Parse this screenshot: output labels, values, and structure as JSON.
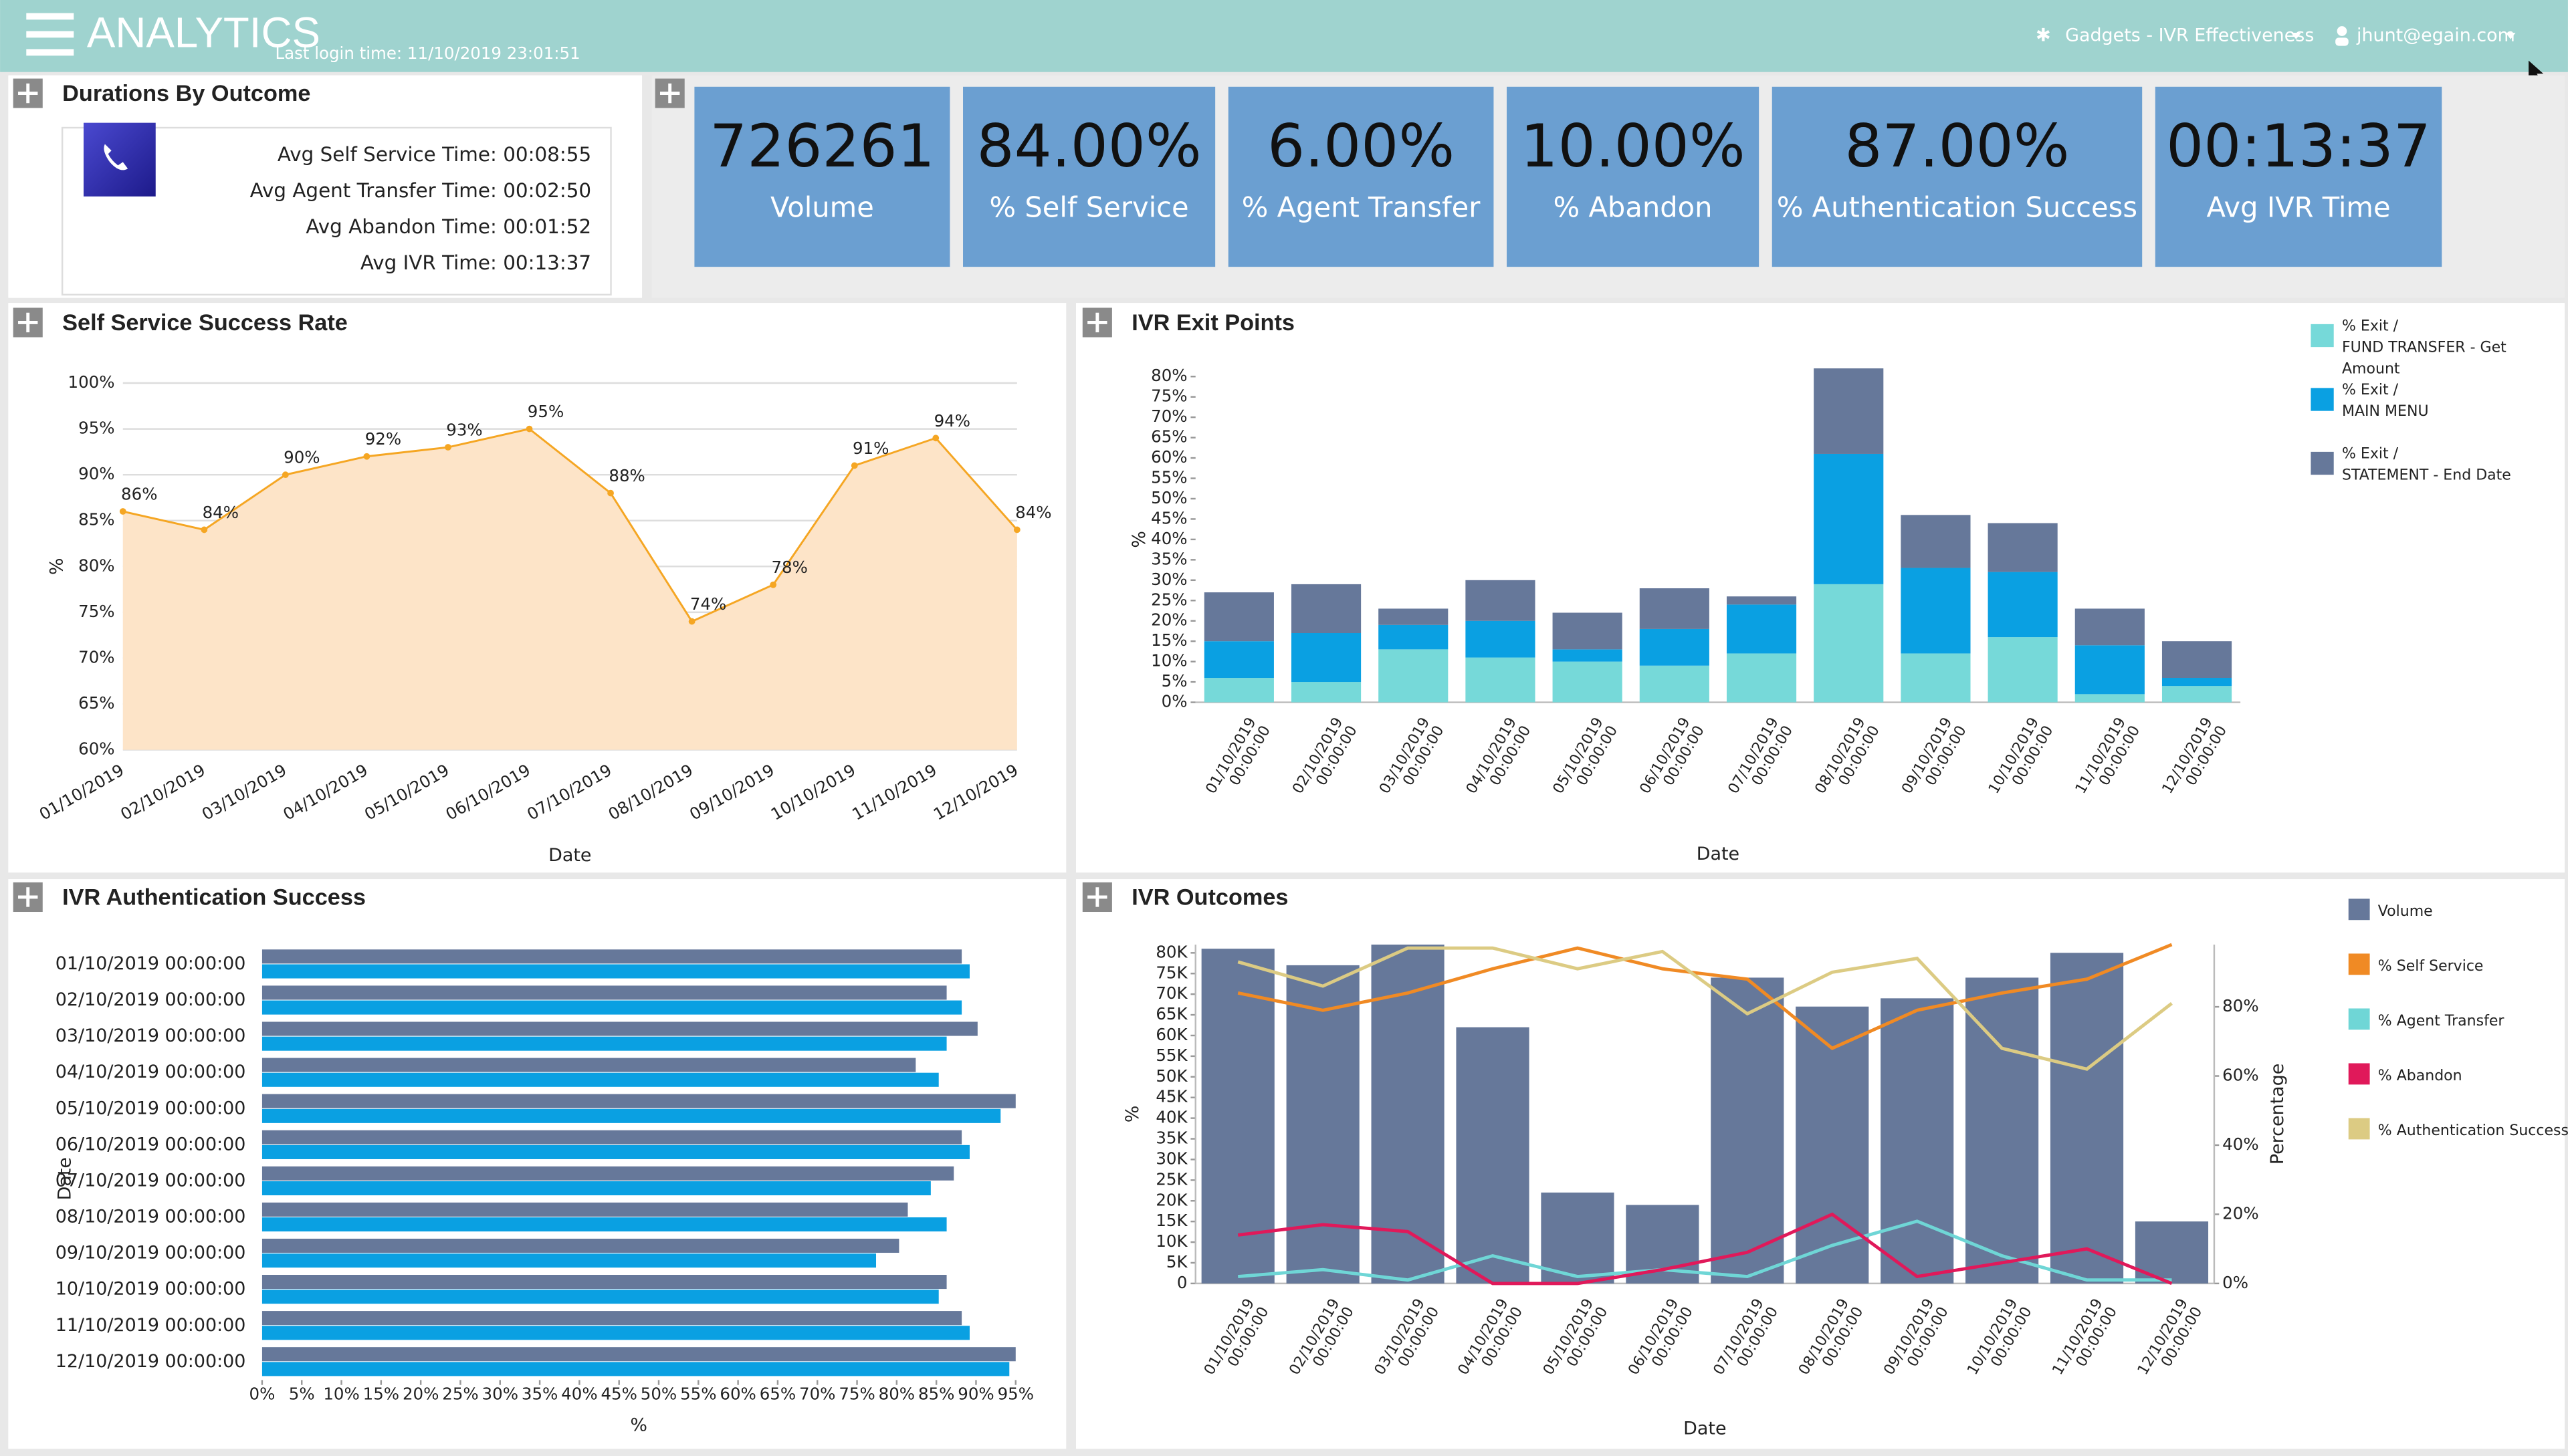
{
  "header": {
    "app_title": "ANALYTICS",
    "last_login": "Last login time: 11/10/2019 23:01:51",
    "gadgets_menu": "Gadgets - IVR Effectiveness",
    "user_menu": "jhunt@egain.com"
  },
  "durations": {
    "title": "Durations By Outcome",
    "lines": [
      "Avg Self Service Time: 00:08:55",
      "Avg Agent Transfer Time: 00:02:50",
      "Avg Abandon Time: 00:01:52",
      "Avg IVR Time: 00:13:37"
    ]
  },
  "kpis": [
    {
      "value": 726261,
      "label": "Volume"
    },
    {
      "value": "84.00%",
      "label": "% Self Service"
    },
    {
      "value": "6.00%",
      "label": "% Agent Transfer"
    },
    {
      "value": "10.00%",
      "label": "% Abandon"
    },
    {
      "value": "87.00%",
      "label": "% Authentication Success"
    },
    {
      "value": "00:13:37",
      "label": "Avg IVR Time"
    }
  ],
  "chart_data": [
    {
      "type": "area",
      "title": "Self Service Success Rate",
      "xlabel": "Date",
      "ylabel": "%",
      "color": "#f5a623",
      "fill": "#fde4c8",
      "grid": true,
      "categories": [
        "01/10/2019",
        "02/10/2019",
        "03/10/2019",
        "04/10/2019",
        "05/10/2019",
        "06/10/2019",
        "07/10/2019",
        "08/10/2019",
        "09/10/2019",
        "10/10/2019",
        "11/10/2019",
        "12/10/2019"
      ],
      "values": [
        86,
        84,
        90,
        92,
        93,
        95,
        88,
        74,
        78,
        91,
        94,
        84
      ],
      "value_labels": [
        "86%",
        "84%",
        "90%",
        "92%",
        "93%",
        "95%",
        "88%",
        "74%",
        "78%",
        "91%",
        "94%",
        "84%"
      ],
      "ylim": [
        60,
        100
      ],
      "yticks": [
        {
          "value": 60,
          "label": "60%"
        },
        {
          "value": 65,
          "label": "65%"
        },
        {
          "value": 70,
          "label": "70%"
        },
        {
          "value": 75,
          "label": "75%"
        },
        {
          "value": 80,
          "label": "80%"
        },
        {
          "value": 85,
          "label": "85%"
        },
        {
          "value": 90,
          "label": "90%"
        },
        {
          "value": 95,
          "label": "95%"
        },
        {
          "value": 100,
          "label": "100%"
        }
      ]
    },
    {
      "type": "stacked-bar",
      "title": "IVR Exit Points",
      "xlabel": "Date",
      "ylabel": "%",
      "categories": [
        "01/10/2019 00:00:00",
        "02/10/2019 00:00:00",
        "03/10/2019 00:00:00",
        "04/10/2019 00:00:00",
        "05/10/2019 00:00:00",
        "06/10/2019 00:00:00",
        "07/10/2019 00:00:00",
        "08/10/2019 00:00:00",
        "09/10/2019 00:00:00",
        "10/10/2019 00:00:00",
        "11/10/2019 00:00:00",
        "12/10/2019 00:00:00"
      ],
      "series": [
        {
          "name": "% Exit /\nFUND TRANSFER - Get Amount",
          "color": "#76d9d9",
          "values": [
            6,
            5,
            13,
            11,
            10,
            9,
            12,
            29,
            12,
            16,
            2,
            4
          ]
        },
        {
          "name": "% Exit /\nMAIN MENU",
          "color": "#0aa0e2",
          "values": [
            9,
            12,
            6,
            9,
            3,
            9,
            12,
            32,
            21,
            16,
            12,
            2
          ]
        },
        {
          "name": "% Exit /\nSTATEMENT - End Date",
          "color": "#66789a",
          "values": [
            12,
            12,
            4,
            10,
            9,
            10,
            2,
            21,
            13,
            12,
            9,
            9
          ]
        }
      ],
      "ylim": [
        0,
        80
      ],
      "yticks": [
        {
          "value": 0,
          "label": "0%"
        },
        {
          "value": 5,
          "label": "5%"
        },
        {
          "value": 10,
          "label": "10%"
        },
        {
          "value": 15,
          "label": "15%"
        },
        {
          "value": 20,
          "label": "20%"
        },
        {
          "value": 25,
          "label": "25%"
        },
        {
          "value": 30,
          "label": "30%"
        },
        {
          "value": 35,
          "label": "35%"
        },
        {
          "value": 40,
          "label": "40%"
        },
        {
          "value": 45,
          "label": "45%"
        },
        {
          "value": 50,
          "label": "50%"
        },
        {
          "value": 55,
          "label": "55%"
        },
        {
          "value": 60,
          "label": "60%"
        },
        {
          "value": 65,
          "label": "65%"
        },
        {
          "value": 70,
          "label": "70%"
        },
        {
          "value": 75,
          "label": "75%"
        },
        {
          "value": 80,
          "label": "80%"
        }
      ]
    },
    {
      "type": "barh",
      "title": "IVR Authentication Success",
      "xlabel": "%",
      "ylabel": "Date",
      "categories": [
        "01/10/2019 00:00:00",
        "02/10/2019 00:00:00",
        "03/10/2019 00:00:00",
        "04/10/2019 00:00:00",
        "05/10/2019 00:00:00",
        "06/10/2019 00:00:00",
        "07/10/2019 00:00:00",
        "08/10/2019 00:00:00",
        "09/10/2019 00:00:00",
        "10/10/2019 00:00:00",
        "11/10/2019 00:00:00",
        "12/10/2019 00:00:00"
      ],
      "series": [
        {
          "color": "#66789a",
          "values": [
            88.2,
            86.3,
            90.2,
            82.4,
            95,
            88.2,
            87.2,
            81.4,
            80.3,
            86.3,
            88.2,
            95
          ]
        },
        {
          "color": "#0aa0e2",
          "values": [
            89.2,
            88.2,
            86.3,
            85.3,
            93.1,
            89.2,
            84.3,
            86.3,
            77.4,
            85.3,
            89.2,
            94.2
          ]
        }
      ],
      "xlim": [
        0,
        96
      ],
      "xticks": [
        {
          "value": 0,
          "label": "0%"
        },
        {
          "value": 5,
          "label": "5%"
        },
        {
          "value": 10,
          "label": "10%"
        },
        {
          "value": 15,
          "label": "15%"
        },
        {
          "value": 20,
          "label": "20%"
        },
        {
          "value": 25,
          "label": "25%"
        },
        {
          "value": 30,
          "label": "30%"
        },
        {
          "value": 35,
          "label": "35%"
        },
        {
          "value": 40,
          "label": "40%"
        },
        {
          "value": 45,
          "label": "45%"
        },
        {
          "value": 50,
          "label": "50%"
        },
        {
          "value": 55,
          "label": "55%"
        },
        {
          "value": 60,
          "label": "60%"
        },
        {
          "value": 65,
          "label": "65%"
        },
        {
          "value": 70,
          "label": "70%"
        },
        {
          "value": 75,
          "label": "75%"
        },
        {
          "value": 80,
          "label": "80%"
        },
        {
          "value": 85,
          "label": "85%"
        },
        {
          "value": 90,
          "label": "90%"
        },
        {
          "value": 95,
          "label": "95%"
        }
      ]
    },
    {
      "type": "combo",
      "title": "IVR Outcomes",
      "xlabel": "Date",
      "ylabel": "%",
      "y2label": "Percentage",
      "categories": [
        "01/10/2019 00:00:00",
        "02/10/2019 00:00:00",
        "03/10/2019 00:00:00",
        "04/10/2019 00:00:00",
        "05/10/2019 00:00:00",
        "06/10/2019 00:00:00",
        "07/10/2019 00:00:00",
        "08/10/2019 00:00:00",
        "09/10/2019 00:00:00",
        "10/10/2019 00:00:00",
        "11/10/2019 00:00:00",
        "12/10/2019 00:00:00"
      ],
      "series": [
        {
          "name": "Volume",
          "type": "bar",
          "color": "#66789a",
          "values": [
            81000,
            77000,
            82000,
            62000,
            22000,
            19000,
            74000,
            67000,
            69000,
            74000,
            80000,
            15000
          ]
        },
        {
          "name": "% Self Service",
          "type": "line",
          "axis": "y2",
          "color": "#f08a24",
          "values": [
            84,
            79,
            84,
            91,
            97,
            91,
            88,
            68,
            79,
            84,
            88,
            98
          ]
        },
        {
          "name": "% Agent Transfer",
          "type": "line",
          "axis": "y2",
          "color": "#6fd6d6",
          "values": [
            2,
            4,
            1,
            8,
            2,
            4,
            2,
            11,
            18,
            8,
            1,
            1
          ]
        },
        {
          "name": "% Abandon",
          "type": "line",
          "axis": "y2",
          "color": "#e0195a",
          "values": [
            14,
            17,
            15,
            0,
            0,
            4,
            9,
            20,
            2,
            6,
            10,
            0
          ]
        },
        {
          "name": "% Authentication Success",
          "type": "line",
          "axis": "y2",
          "color": "#dccb83",
          "values": [
            93,
            86,
            97,
            97,
            91,
            96,
            78,
            90,
            94,
            68,
            62,
            81
          ]
        }
      ],
      "ylim": [
        0,
        82000
      ],
      "yticks": [
        0,
        {
          "value": 5000,
          "label": "5K"
        },
        {
          "value": 10000,
          "label": "10K"
        },
        {
          "value": 15000,
          "label": "15K"
        },
        {
          "value": 20000,
          "label": "20K"
        },
        {
          "value": 25000,
          "label": "25K"
        },
        {
          "value": 30000,
          "label": "30K"
        },
        {
          "value": 35000,
          "label": "35K"
        },
        {
          "value": 40000,
          "label": "40K"
        },
        {
          "value": 45000,
          "label": "45K"
        },
        {
          "value": 50000,
          "label": "50K"
        },
        {
          "value": 55000,
          "label": "55K"
        },
        {
          "value": 60000,
          "label": "60K"
        },
        {
          "value": 65000,
          "label": "65K"
        },
        {
          "value": 70000,
          "label": "70K"
        },
        {
          "value": 75000,
          "label": "75K"
        },
        {
          "value": 80000,
          "label": "80K"
        }
      ],
      "y2lim": [
        0,
        98
      ],
      "y2ticks": [
        {
          "value": 0,
          "label": "0%"
        },
        {
          "value": 20,
          "label": "20%"
        },
        {
          "value": 40,
          "label": "40%"
        },
        {
          "value": 60,
          "label": "60%"
        },
        {
          "value": 80,
          "label": "80%"
        }
      ]
    }
  ]
}
